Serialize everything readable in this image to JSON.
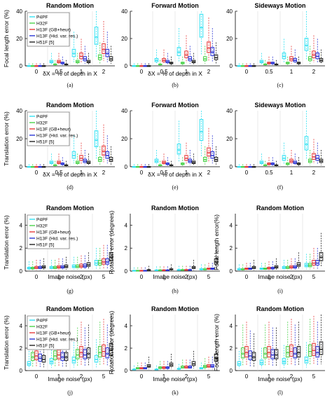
{
  "series_names": [
    "P4PF",
    "H32F",
    "H13F (GB+heur)",
    "H13F (Hid. var. res.)",
    "H51F [5]"
  ],
  "series_colors": [
    "#33e1f2",
    "#4ad24a",
    "#e63b3b",
    "#2a35d6",
    "#222222"
  ],
  "subfigures": [
    {
      "caption": "(a)"
    },
    {
      "caption": "(b)"
    },
    {
      "caption": "(c)"
    },
    {
      "caption": "(d)"
    },
    {
      "caption": "(e)"
    },
    {
      "caption": "(f)"
    },
    {
      "caption": "(g)"
    },
    {
      "caption": "(h)"
    },
    {
      "caption": "(i)"
    },
    {
      "caption": "(j)"
    },
    {
      "caption": "(k)"
    },
    {
      "caption": "(l)"
    }
  ],
  "chart_data": [
    {
      "type": "box",
      "title": "Random Motion",
      "ylabel": "Focal length error (%)",
      "xlabel": "δX = % of depth in X",
      "categories": [
        "0",
        "0.5",
        "1",
        "2"
      ],
      "yticks": [
        0,
        20,
        40
      ],
      "ylim": [
        0,
        40
      ],
      "legend": "top-left",
      "series": [
        {
          "name": "P4PF",
          "medians": [
            0.1,
            3,
            9,
            21
          ]
        },
        {
          "name": "H32F",
          "medians": [
            0.1,
            1,
            3,
            6
          ]
        },
        {
          "name": "H13F (GB+heur)",
          "medians": [
            0.1,
            3,
            7,
            12
          ]
        },
        {
          "name": "H13F (Hid. var. res.)",
          "medians": [
            0.1,
            2,
            5,
            9
          ]
        },
        {
          "name": "H51F [5]",
          "medians": [
            0.1,
            1,
            3,
            5
          ]
        }
      ]
    },
    {
      "type": "box",
      "title": "Forward Motion",
      "ylabel": "",
      "xlabel": "δX = % of depth in X",
      "categories": [
        "0",
        "0.5",
        "1",
        "2"
      ],
      "yticks": [
        0,
        20,
        40
      ],
      "ylim": [
        0,
        40
      ],
      "series": [
        {
          "name": "P4PF",
          "medians": [
            0.1,
            4,
            10,
            28
          ]
        },
        {
          "name": "H32F",
          "medians": [
            0.1,
            1,
            2,
            5
          ]
        },
        {
          "name": "H13F (GB+heur)",
          "medians": [
            0.1,
            4,
            8,
            13
          ]
        },
        {
          "name": "H13F (Hid. var. res.)",
          "medians": [
            0.1,
            3,
            5,
            10
          ]
        },
        {
          "name": "H51F [5]",
          "medians": [
            0.1,
            2,
            3,
            6
          ]
        }
      ]
    },
    {
      "type": "box",
      "title": "Sideways Motion",
      "ylabel": "",
      "xlabel": "",
      "categories": [
        "0",
        "0.5",
        "1",
        "2"
      ],
      "yticks": [
        0,
        20,
        40
      ],
      "ylim": [
        0,
        40
      ],
      "series": [
        {
          "name": "P4PF",
          "medians": [
            0.1,
            3,
            7,
            15
          ]
        },
        {
          "name": "H32F",
          "medians": [
            0.1,
            1,
            2,
            5
          ]
        },
        {
          "name": "H13F (GB+heur)",
          "medians": [
            0.1,
            2,
            5,
            8
          ]
        },
        {
          "name": "H13F (Hid. var. res.)",
          "medians": [
            0.1,
            2,
            4,
            7
          ]
        },
        {
          "name": "H51F [5]",
          "medians": [
            0.1,
            1,
            2,
            4
          ]
        }
      ]
    },
    {
      "type": "box",
      "title": "Random Motion",
      "ylabel": "Translation error (%)",
      "xlabel": "δX = % of depth in X",
      "categories": [
        "0",
        "0.5",
        "1",
        "2"
      ],
      "yticks": [
        0,
        20,
        40
      ],
      "ylim": [
        0,
        40
      ],
      "legend": "top-left",
      "series": [
        {
          "name": "P4PF",
          "medians": [
            0.1,
            3,
            8,
            19
          ]
        },
        {
          "name": "H32F",
          "medians": [
            0.1,
            1,
            3,
            5
          ]
        },
        {
          "name": "H13F (GB+heur)",
          "medians": [
            0.1,
            3,
            6,
            11
          ]
        },
        {
          "name": "H13F (Hid. var. res.)",
          "medians": [
            0.1,
            2,
            4,
            8
          ]
        },
        {
          "name": "H51F [5]",
          "medians": [
            0.1,
            1,
            3,
            5
          ]
        }
      ]
    },
    {
      "type": "box",
      "title": "Forward Motion",
      "ylabel": "",
      "xlabel": "δX = % of depth in X",
      "categories": [
        "0",
        "0.5",
        "1",
        "2"
      ],
      "yticks": [
        0,
        20,
        40
      ],
      "ylim": [
        0,
        40
      ],
      "series": [
        {
          "name": "P4PF",
          "medians": [
            0.1,
            4,
            12,
            25
          ]
        },
        {
          "name": "H32F",
          "medians": [
            0.1,
            1,
            2,
            5
          ]
        },
        {
          "name": "H13F (GB+heur)",
          "medians": [
            0.1,
            3,
            6,
            10
          ]
        },
        {
          "name": "H13F (Hid. var. res.)",
          "medians": [
            0.1,
            2,
            4,
            8
          ]
        },
        {
          "name": "H51F [5]",
          "medians": [
            0.1,
            1,
            3,
            5
          ]
        }
      ]
    },
    {
      "type": "box",
      "title": "Sideways Motion",
      "ylabel": "",
      "xlabel": "",
      "categories": [
        "0",
        "0.5",
        "1",
        "2"
      ],
      "yticks": [
        0,
        20,
        40
      ],
      "ylim": [
        0,
        40
      ],
      "series": [
        {
          "name": "P4PF",
          "medians": [
            0.1,
            3,
            6,
            16
          ]
        },
        {
          "name": "H32F",
          "medians": [
            0.1,
            1,
            2,
            4
          ]
        },
        {
          "name": "H13F (GB+heur)",
          "medians": [
            0.1,
            2,
            4,
            7
          ]
        },
        {
          "name": "H13F (Hid. var. res.)",
          "medians": [
            0.1,
            2,
            3,
            6
          ]
        },
        {
          "name": "H51F [5]",
          "medians": [
            0.1,
            1,
            2,
            4
          ]
        }
      ]
    },
    {
      "type": "box",
      "title": "Random Motion",
      "ylabel": "Translation error (%)",
      "xlabel": "Image noise (px)",
      "categories": [
        "0",
        "1",
        "2",
        "5"
      ],
      "yticks": [
        0,
        2,
        4
      ],
      "ylim": [
        0,
        5
      ],
      "legend": "top-left",
      "series": [
        {
          "name": "P4PF",
          "medians": [
            0.25,
            0.3,
            0.4,
            0.7
          ]
        },
        {
          "name": "H32F",
          "medians": [
            0.25,
            0.3,
            0.4,
            0.7
          ]
        },
        {
          "name": "H13F (GB+heur)",
          "medians": [
            0.3,
            0.35,
            0.45,
            0.8
          ]
        },
        {
          "name": "H13F (Hid. var. res.)",
          "medians": [
            0.3,
            0.35,
            0.45,
            0.8
          ]
        },
        {
          "name": "H51F [5]",
          "medians": [
            0.35,
            0.4,
            0.55,
            1.2
          ]
        }
      ]
    },
    {
      "type": "box",
      "title": "Random Motion",
      "ylabel": "Rotation error (degrees)",
      "xlabel": "Image noise (px)",
      "categories": [
        "0",
        "1",
        "2",
        "5"
      ],
      "yticks": [
        0,
        2,
        4
      ],
      "ylim": [
        0,
        5
      ],
      "series": [
        {
          "name": "P4PF",
          "medians": [
            0.05,
            0.08,
            0.1,
            0.15
          ]
        },
        {
          "name": "H32F",
          "medians": [
            0.05,
            0.08,
            0.1,
            0.15
          ]
        },
        {
          "name": "H13F (GB+heur)",
          "medians": [
            0.05,
            0.08,
            0.1,
            0.2
          ]
        },
        {
          "name": "H13F (Hid. var. res.)",
          "medians": [
            0.05,
            0.08,
            0.1,
            0.2
          ]
        },
        {
          "name": "H51F [5]",
          "medians": [
            0.1,
            0.15,
            0.3,
            0.8
          ]
        }
      ]
    },
    {
      "type": "box",
      "title": "Random Motion",
      "ylabel": "Focal length error(%)",
      "xlabel": "Image noise (px)",
      "categories": [
        "0",
        "1",
        "2",
        "5"
      ],
      "yticks": [
        0,
        2,
        4
      ],
      "ylim": [
        0,
        5
      ],
      "series": [
        {
          "name": "P4PF",
          "medians": [
            0.15,
            0.2,
            0.3,
            0.5
          ]
        },
        {
          "name": "H32F",
          "medians": [
            0.15,
            0.2,
            0.3,
            0.5
          ]
        },
        {
          "name": "H13F (GB+heur)",
          "medians": [
            0.2,
            0.25,
            0.35,
            0.7
          ]
        },
        {
          "name": "H13F (Hid. var. res.)",
          "medians": [
            0.2,
            0.25,
            0.35,
            0.7
          ]
        },
        {
          "name": "H51F [5]",
          "medians": [
            0.3,
            0.35,
            0.55,
            1.2
          ]
        }
      ]
    },
    {
      "type": "box",
      "title": "Random Motion",
      "ylabel": "Translation error (%)",
      "xlabel": "Image noise (px)",
      "categories": [
        "0",
        "1",
        "2",
        "5"
      ],
      "yticks": [
        0,
        2,
        4
      ],
      "ylim": [
        0,
        5
      ],
      "legend": "top-left",
      "series": [
        {
          "name": "P4PF",
          "medians": [
            0.6,
            0.8,
            0.9,
            1.0
          ]
        },
        {
          "name": "H32F",
          "medians": [
            1.2,
            1.3,
            1.4,
            1.6
          ]
        },
        {
          "name": "H13F (GB+heur)",
          "medians": [
            1.3,
            1.4,
            1.6,
            1.7
          ]
        },
        {
          "name": "H13F (Hid. var. res.)",
          "medians": [
            1.1,
            1.2,
            1.4,
            1.5
          ]
        },
        {
          "name": "H51F [5]",
          "medians": [
            1.0,
            1.2,
            1.5,
            1.8
          ]
        }
      ]
    },
    {
      "type": "box",
      "title": "Random Motion",
      "ylabel": "Rotation error (degrees)",
      "xlabel": "Image noise (px)",
      "categories": [
        "0",
        "1",
        "2",
        "5"
      ],
      "yticks": [
        0,
        2,
        4
      ],
      "ylim": [
        0,
        5
      ],
      "series": [
        {
          "name": "P4PF",
          "medians": [
            0.1,
            0.1,
            0.15,
            0.2
          ]
        },
        {
          "name": "H32F",
          "medians": [
            0.2,
            0.25,
            0.3,
            0.35
          ]
        },
        {
          "name": "H13F (GB+heur)",
          "medians": [
            0.2,
            0.25,
            0.3,
            0.4
          ]
        },
        {
          "name": "H13F (Hid. var. res.)",
          "medians": [
            0.2,
            0.25,
            0.3,
            0.4
          ]
        },
        {
          "name": "H51F [5]",
          "medians": [
            0.4,
            0.5,
            0.6,
            1.1
          ]
        }
      ]
    },
    {
      "type": "box",
      "title": "Random Motion",
      "ylabel": "Focal length error (%)",
      "xlabel": "Image noise (px)",
      "categories": [
        "0",
        "1",
        "2",
        "5"
      ],
      "yticks": [
        0,
        2,
        4
      ],
      "ylim": [
        0,
        5
      ],
      "series": [
        {
          "name": "P4PF",
          "medians": [
            0.6,
            0.7,
            0.8,
            0.9
          ]
        },
        {
          "name": "H32F",
          "medians": [
            1.5,
            1.5,
            1.6,
            1.7
          ]
        },
        {
          "name": "H13F (GB+heur)",
          "medians": [
            1.6,
            1.6,
            1.7,
            1.8
          ]
        },
        {
          "name": "H13F (Hid. var. res.)",
          "medians": [
            1.3,
            1.4,
            1.5,
            1.6
          ]
        },
        {
          "name": "H51F [5]",
          "medians": [
            1.2,
            1.4,
            1.6,
            1.9
          ]
        }
      ]
    }
  ]
}
